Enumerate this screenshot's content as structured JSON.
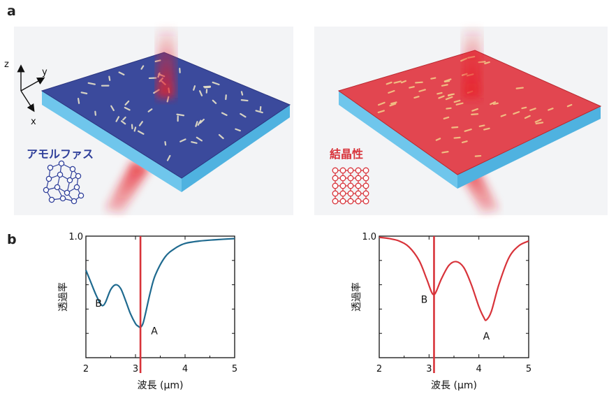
{
  "panels": {
    "a": "a",
    "b": "b"
  },
  "axes_labels": {
    "z": "z",
    "y": "y",
    "x": "x"
  },
  "phases": {
    "amorphous": {
      "label": "アモルファス",
      "color": "#2f3f9a"
    },
    "crystalline": {
      "label": "結晶性",
      "color": "#d8333a"
    }
  },
  "chart_data": [
    {
      "type": "line",
      "title": "",
      "xlabel": "波長 (μm)",
      "ylabel": "透過率",
      "xlim": [
        2,
        5
      ],
      "xticks": [
        "2",
        "3",
        "4",
        "5"
      ],
      "ytick_top": "1.0",
      "color": "#1f6a8f",
      "series": [
        {
          "x": [
            2.0,
            2.1,
            2.2,
            2.3,
            2.35,
            2.4,
            2.5,
            2.6,
            2.7,
            2.8,
            2.9,
            3.0,
            3.05,
            3.1,
            3.15,
            3.2,
            3.3,
            3.4,
            3.6,
            3.8,
            4.0,
            4.3,
            4.6,
            5.0
          ],
          "y": [
            0.72,
            0.62,
            0.52,
            0.44,
            0.43,
            0.46,
            0.56,
            0.6,
            0.57,
            0.47,
            0.36,
            0.28,
            0.26,
            0.25,
            0.28,
            0.36,
            0.54,
            0.68,
            0.83,
            0.9,
            0.94,
            0.96,
            0.97,
            0.98
          ]
        }
      ],
      "vline_x": 3.1,
      "vline_color": "#d8333a",
      "annotations": [
        {
          "text": "B",
          "x": 2.35,
          "y": 0.43
        },
        {
          "text": "A",
          "x": 3.1,
          "y": 0.25
        }
      ]
    },
    {
      "type": "line",
      "title": "",
      "xlabel": "波長 (μm)",
      "ylabel": "透過率",
      "xlim": [
        2,
        5
      ],
      "xticks": [
        "2",
        "3",
        "4",
        "5"
      ],
      "ytick_top": "1.0",
      "color": "#d8333a",
      "series": [
        {
          "x": [
            2.0,
            2.2,
            2.4,
            2.6,
            2.8,
            2.95,
            3.05,
            3.1,
            3.15,
            3.25,
            3.4,
            3.55,
            3.7,
            3.85,
            4.0,
            4.1,
            4.15,
            4.25,
            4.4,
            4.6,
            4.8,
            5.0
          ],
          "y": [
            0.99,
            0.98,
            0.96,
            0.91,
            0.8,
            0.65,
            0.54,
            0.52,
            0.55,
            0.65,
            0.76,
            0.79,
            0.74,
            0.6,
            0.42,
            0.33,
            0.31,
            0.38,
            0.6,
            0.82,
            0.92,
            0.96
          ]
        }
      ],
      "vline_x": 3.1,
      "vline_color": "#d8333a",
      "annotations": [
        {
          "text": "B",
          "x": 3.1,
          "y": 0.52
        },
        {
          "text": "A",
          "x": 4.15,
          "y": 0.31
        }
      ]
    }
  ]
}
